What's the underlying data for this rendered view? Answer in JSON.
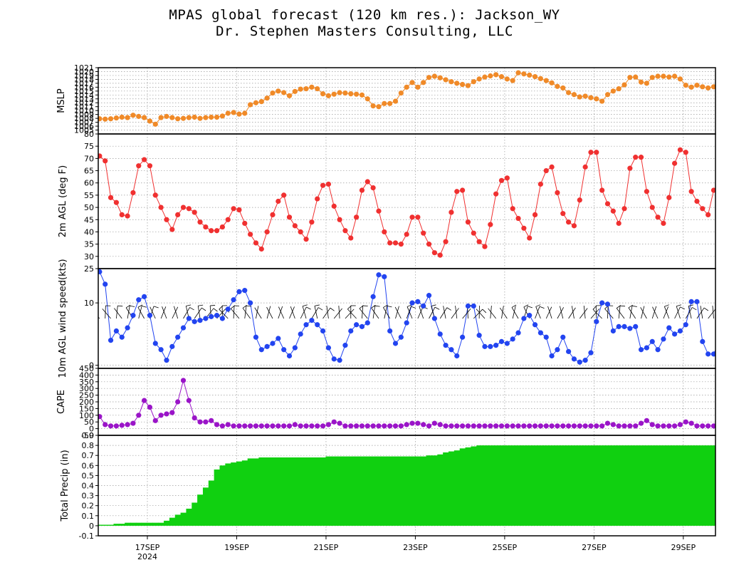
{
  "title": {
    "line1": "MPAS global forecast (120 km res.): Jackson_WY",
    "line2": "Dr. Stephen Masters Consulting, LLC"
  },
  "x_axis": {
    "start_day": 15.9,
    "end_day": 29.72,
    "ticks": [
      {
        "day": 17,
        "label": "17SEP"
      },
      {
        "day": 19,
        "label": "19SEP"
      },
      {
        "day": 21,
        "label": "21SEP"
      },
      {
        "day": 23,
        "label": "23SEP"
      },
      {
        "day": 25,
        "label": "25SEP"
      },
      {
        "day": 27,
        "label": "27SEP"
      },
      {
        "day": 29,
        "label": "29SEP"
      }
    ],
    "year_label": "2024",
    "year_under_tick": "17SEP"
  },
  "colors": {
    "mslp": "#f08a28",
    "temperature": "#f03030",
    "wind": "#2244f0",
    "cape": "#9a14c8",
    "precip": "#10d010",
    "barb": "#000000"
  },
  "chart_data": [
    {
      "type": "line",
      "name": "mslp",
      "ylabel": "MSLP",
      "ylim": [
        1004,
        1021
      ],
      "yticks": [
        1004,
        1005,
        1006,
        1007,
        1008,
        1009,
        1010,
        1011,
        1012,
        1013,
        1014,
        1015,
        1016,
        1017,
        1018,
        1019,
        1020,
        1021
      ],
      "ytick_labels": [
        "",
        "1005",
        "1006",
        "1007",
        "1008",
        "1009",
        "1010",
        "1011",
        "1012",
        "1013",
        "1014",
        "1015",
        "1016",
        "1017",
        "1018",
        "1019",
        "1020",
        "1021"
      ],
      "values": [
        1007.9,
        1007.8,
        1007.9,
        1008.1,
        1008.3,
        1008.2,
        1008.8,
        1008.5,
        1008.2,
        1007.3,
        1006.5,
        1008.2,
        1008.5,
        1008.2,
        1007.9,
        1008.0,
        1008.2,
        1008.3,
        1008.0,
        1008.2,
        1008.3,
        1008.3,
        1008.6,
        1009.3,
        1009.5,
        1009.1,
        1009.3,
        1011.5,
        1012.0,
        1012.3,
        1013.2,
        1014.5,
        1015.0,
        1014.6,
        1013.8,
        1014.9,
        1015.5,
        1015.6,
        1016.0,
        1015.6,
        1014.3,
        1013.8,
        1014.2,
        1014.6,
        1014.5,
        1014.3,
        1014.2,
        1014.0,
        1013.0,
        1011.2,
        1011.0,
        1011.8,
        1011.8,
        1012.4,
        1014.5,
        1016.0,
        1017.2,
        1016.0,
        1017.2,
        1018.5,
        1018.8,
        1018.4,
        1017.9,
        1017.4,
        1017.0,
        1016.7,
        1016.4,
        1017.4,
        1018.1,
        1018.6,
        1018.9,
        1019.2,
        1018.7,
        1018.1,
        1017.7,
        1019.7,
        1019.4,
        1019.1,
        1018.7,
        1018.2,
        1017.7,
        1017.1,
        1016.2,
        1015.8,
        1014.6,
        1014.1,
        1013.5,
        1013.7,
        1013.3,
        1013.0,
        1012.4,
        1014.1,
        1015.0,
        1015.6,
        1016.6,
        1018.5,
        1018.6,
        1017.3,
        1017.0,
        1018.5,
        1018.8,
        1018.8,
        1018.6,
        1018.8,
        1018.1,
        1016.5,
        1016.0,
        1016.5,
        1016.1,
        1015.8,
        1016.1,
        1016.0
      ]
    },
    {
      "type": "line",
      "name": "temperature",
      "ylabel": "2m AGL (deg F)",
      "ylim": [
        25,
        80
      ],
      "yticks": [
        25,
        30,
        35,
        40,
        45,
        50,
        55,
        60,
        65,
        70,
        75,
        80
      ],
      "ytick_labels": [
        "25",
        "30",
        "35",
        "40",
        "45",
        "50",
        "55",
        "60",
        "65",
        "70",
        "75",
        "80"
      ],
      "values": [
        71,
        69,
        54,
        52,
        47,
        46.5,
        56,
        67,
        69.5,
        67,
        55,
        50,
        45,
        41,
        47,
        50,
        49.5,
        48,
        44,
        42,
        40.5,
        40.5,
        42,
        45,
        49.5,
        49,
        43.5,
        39,
        35.5,
        33,
        40,
        47,
        52.5,
        55,
        46,
        42.5,
        40,
        37,
        44,
        53.5,
        59,
        59.5,
        50.5,
        45,
        40.5,
        37.5,
        46,
        57,
        60.5,
        58,
        48.5,
        40,
        35.5,
        35.5,
        35,
        39,
        46,
        46,
        39.5,
        35,
        31.5,
        30.5,
        36,
        48,
        56.5,
        57,
        44,
        39.5,
        36,
        34,
        43,
        55.5,
        61,
        62,
        49.5,
        45.5,
        41.5,
        37.5,
        47,
        59.5,
        65,
        66.5,
        56,
        47.5,
        44,
        42.5,
        53,
        66.5,
        72.5,
        72.5,
        57,
        51.5,
        48.5,
        43.5,
        49.5,
        66,
        70.5,
        70.5,
        56.5,
        50,
        46,
        43.5,
        54,
        68,
        73.5,
        72.5,
        56.5,
        52.5,
        49.5,
        47,
        57
      ]
    },
    {
      "type": "line",
      "name": "wind",
      "ylabel": "10m AGL wind speed(kts)",
      "ylim": [
        -0.5,
        15.5
      ],
      "yticks": [
        0,
        10
      ],
      "ytick_labels": [
        "0",
        "10"
      ],
      "values": [
        15,
        13,
        4,
        5.5,
        4.5,
        6,
        8,
        10.5,
        11,
        8,
        3.5,
        2.5,
        0.8,
        3,
        4.5,
        6,
        7.5,
        7,
        7.2,
        7.5,
        7.8,
        8,
        7.5,
        9,
        10.5,
        11.8,
        12,
        10,
        4.5,
        2.5,
        3,
        3.5,
        4.3,
        2.5,
        1.5,
        2.8,
        5,
        6.5,
        7.2,
        6.5,
        5.5,
        2.8,
        1,
        0.8,
        3.2,
        5.5,
        6.5,
        6.2,
        6.8,
        11,
        14.5,
        14.2,
        5.5,
        3.5,
        4.5,
        6.8,
        10,
        10.2,
        9.5,
        11.2,
        7.5,
        5,
        3.2,
        2.5,
        1.5,
        4.5,
        9.5,
        9.5,
        4.8,
        3,
        3,
        3.2,
        3.8,
        3.5,
        4.2,
        5.2,
        7.5,
        8,
        6.5,
        5.2,
        4.5,
        1.5,
        2.5,
        4.5,
        2.2,
        1,
        0.5,
        0.8,
        2,
        7,
        10,
        9.8,
        5.5,
        6.2,
        6.2,
        5.9,
        6.2,
        2.5,
        2.8,
        3.8,
        2.5,
        4.2,
        6,
        5,
        5.5,
        6.5,
        10.2,
        10.2,
        3.8,
        1.8,
        1.8,
        3.8,
        6.2
      ]
    },
    {
      "type": "line",
      "name": "cape",
      "ylabel": "CAPE",
      "ylim": [
        -50,
        450
      ],
      "yticks": [
        -50,
        0,
        50,
        100,
        150,
        200,
        250,
        300,
        350,
        400,
        450
      ],
      "ytick_labels": [
        "-50",
        "0",
        "50",
        "100",
        "150",
        "200",
        "250",
        "300",
        "350",
        "400",
        "450"
      ],
      "values": [
        90,
        30,
        20,
        20,
        25,
        30,
        40,
        100,
        210,
        160,
        60,
        100,
        110,
        120,
        200,
        360,
        210,
        80,
        50,
        50,
        60,
        30,
        20,
        30,
        20,
        20,
        20,
        20,
        20,
        20,
        20,
        20,
        20,
        20,
        20,
        30,
        20,
        20,
        20,
        20,
        20,
        30,
        50,
        40,
        20,
        20,
        20,
        20,
        20,
        20,
        20,
        20,
        20,
        20,
        20,
        30,
        40,
        40,
        30,
        20,
        40,
        30,
        20,
        20,
        20,
        20,
        20,
        20,
        20,
        20,
        20,
        20,
        20,
        20,
        20,
        20,
        20,
        20,
        20,
        20,
        20,
        20,
        20,
        20,
        20,
        20,
        20,
        20,
        20,
        20,
        20,
        40,
        30,
        20,
        20,
        20,
        20,
        40,
        60,
        30,
        20,
        20,
        20,
        20,
        30,
        50,
        40,
        20,
        20,
        20,
        20,
        20
      ]
    },
    {
      "type": "bar",
      "name": "precip",
      "ylabel": "Total Precip (in)",
      "ylim": [
        -0.1,
        0.9
      ],
      "yticks": [
        -0.1,
        0,
        0.1,
        0.2,
        0.3,
        0.4,
        0.5,
        0.6,
        0.7,
        0.8,
        0.9
      ],
      "ytick_labels": [
        "-0.1",
        "0",
        "0.1",
        "0.2",
        "0.3",
        "0.4",
        "0.5",
        "0.6",
        "0.7",
        "0.8",
        "0.9"
      ],
      "values": [
        0.01,
        0.01,
        0.01,
        0.02,
        0.02,
        0.03,
        0.03,
        0.03,
        0.03,
        0.03,
        0.03,
        0.03,
        0.05,
        0.08,
        0.11,
        0.13,
        0.17,
        0.23,
        0.31,
        0.38,
        0.45,
        0.56,
        0.6,
        0.62,
        0.63,
        0.64,
        0.65,
        0.67,
        0.67,
        0.68,
        0.68,
        0.68,
        0.68,
        0.68,
        0.68,
        0.68,
        0.68,
        0.68,
        0.68,
        0.68,
        0.68,
        0.69,
        0.69,
        0.69,
        0.69,
        0.69,
        0.69,
        0.69,
        0.69,
        0.69,
        0.69,
        0.69,
        0.69,
        0.69,
        0.69,
        0.69,
        0.69,
        0.69,
        0.69,
        0.7,
        0.7,
        0.71,
        0.73,
        0.74,
        0.75,
        0.77,
        0.78,
        0.79,
        0.8,
        0.8,
        0.8,
        0.8,
        0.8,
        0.8,
        0.8,
        0.8,
        0.8,
        0.8,
        0.8,
        0.8,
        0.8,
        0.8,
        0.8,
        0.8,
        0.8,
        0.8,
        0.8,
        0.8,
        0.8,
        0.8,
        0.8,
        0.8,
        0.8,
        0.8,
        0.8,
        0.8,
        0.8,
        0.8,
        0.8,
        0.8,
        0.8,
        0.8,
        0.8,
        0.8,
        0.8,
        0.8,
        0.8,
        0.8,
        0.8,
        0.8,
        0.8,
        0.8,
        0.8
      ]
    }
  ]
}
